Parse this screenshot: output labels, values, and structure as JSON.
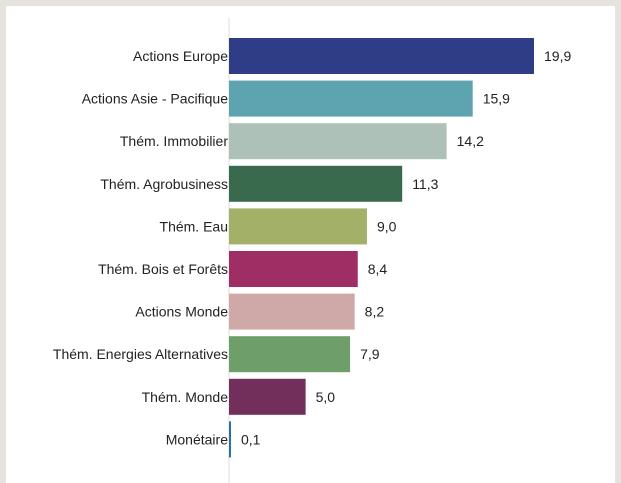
{
  "chart_data": {
    "type": "bar",
    "orientation": "horizontal",
    "categories": [
      "Actions Europe",
      "Actions Asie - Pacifique",
      "Thém. Immobilier",
      "Thém. Agrobusiness",
      "Thém. Eau",
      "Thém. Bois et Forêts",
      "Actions Monde",
      "Thém. Energies Alternatives",
      "Thém. Monde",
      "Monétaire"
    ],
    "values": [
      19.9,
      15.9,
      14.2,
      11.3,
      9.0,
      8.4,
      8.2,
      7.9,
      5.0,
      0.1
    ],
    "value_labels": [
      "19,9",
      "15,9",
      "14,2",
      "11,3",
      "9,0",
      "8,4",
      "8,2",
      "7,9",
      "5,0",
      "0,1"
    ],
    "colors": [
      "#2e3d85",
      "#5ea4b0",
      "#adc1b8",
      "#3a6a4e",
      "#a3b067",
      "#9e2e63",
      "#cfa8a8",
      "#6e9e6a",
      "#722f5b",
      "#2a6fa8"
    ],
    "title": "",
    "xlabel": "",
    "ylabel": "",
    "xlim": [
      0,
      20
    ],
    "grid": false,
    "legend": "none"
  }
}
